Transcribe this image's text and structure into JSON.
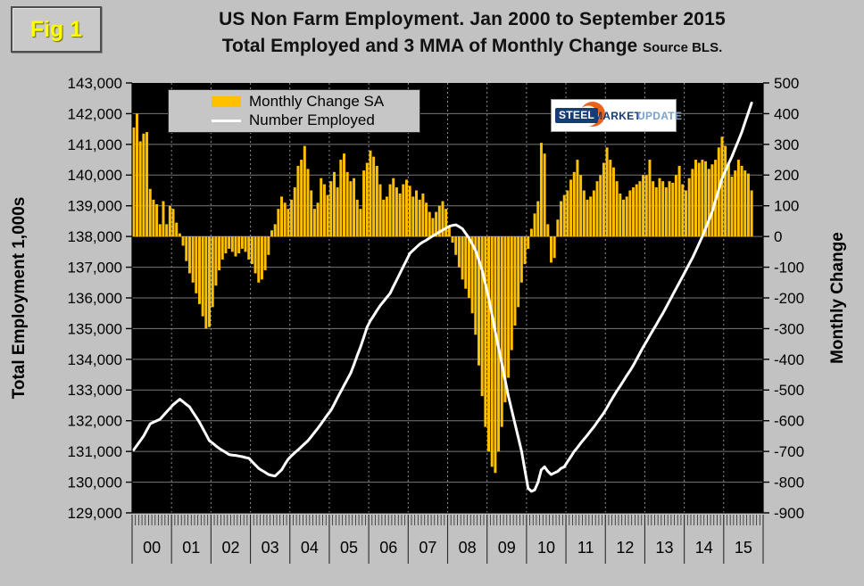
{
  "figure_label": "Fig 1",
  "title": {
    "line1": "US Non Farm Employment. Jan 2000 to September 2015",
    "line2": "Total Employed and 3 MMA of Monthly Change",
    "source": "Source BLS."
  },
  "legend": {
    "bar_label": "Monthly Change SA",
    "line_label": "Number Employed"
  },
  "logo": {
    "word1": "STEEL",
    "word2": "MARKET",
    "word3": "UPDATE"
  },
  "colors": {
    "page_bg": "#c2c2c2",
    "plot_bg": "#000000",
    "bar": "#FFC000",
    "line": "#ffffff",
    "hgrid": "#787878",
    "vgrid": "#8f8f8f",
    "axis_text": "#000000",
    "fig_label": "#ffff00",
    "logo_navy": "#173d75",
    "logo_light_blue": "#7ba1c9",
    "logo_orange": "#e8641b"
  },
  "axes": {
    "left_title": "Total Employment 1,000s",
    "right_title": "Monthly Change",
    "left_ticks": [
      "143,000",
      "142,000",
      "141,000",
      "140,000",
      "139,000",
      "138,000",
      "137,000",
      "136,000",
      "135,000",
      "134,000",
      "133,000",
      "132,000",
      "131,000",
      "130,000",
      "129,000"
    ],
    "right_ticks": [
      "500",
      "400",
      "300",
      "200",
      "100",
      "0",
      "-100",
      "-200",
      "-300",
      "-400",
      "-500",
      "-600",
      "-700",
      "-800",
      "-900"
    ],
    "x_labels": [
      "00",
      "01",
      "02",
      "03",
      "04",
      "05",
      "06",
      "07",
      "08",
      "09",
      "10",
      "11",
      "12",
      "13",
      "14",
      "15"
    ]
  },
  "chart_data": {
    "type": "bar+line",
    "title": "US Non Farm Employment. Jan 2000 to September 2015",
    "x_start": "2000-01",
    "x_end": "2015-09",
    "months_shown": 189,
    "month_slots": 192,
    "left_axis_range": [
      129000,
      143000
    ],
    "right_axis_range": [
      -900,
      500
    ],
    "legend_position": "top-left",
    "grid": "on",
    "series": [
      {
        "name": "Monthly Change SA",
        "type": "bar",
        "axis": "right",
        "values": [
          355,
          400,
          310,
          335,
          340,
          155,
          120,
          105,
          40,
          115,
          40,
          100,
          90,
          45,
          10,
          -30,
          -80,
          -120,
          -150,
          -185,
          -220,
          -260,
          -300,
          -295,
          -230,
          -160,
          -110,
          -75,
          -55,
          -40,
          -50,
          -65,
          -55,
          -40,
          -50,
          -75,
          -90,
          -120,
          -150,
          -140,
          -110,
          -60,
          20,
          40,
          90,
          130,
          110,
          90,
          120,
          160,
          230,
          250,
          295,
          220,
          150,
          90,
          110,
          190,
          170,
          135,
          180,
          210,
          160,
          250,
          270,
          210,
          180,
          190,
          120,
          90,
          215,
          240,
          280,
          260,
          230,
          170,
          120,
          130,
          170,
          190,
          160,
          140,
          170,
          185,
          165,
          130,
          150,
          120,
          140,
          110,
          80,
          60,
          80,
          100,
          115,
          90,
          30,
          -20,
          -60,
          -100,
          -140,
          -170,
          -200,
          -250,
          -320,
          -420,
          -520,
          -620,
          -700,
          -750,
          -770,
          -700,
          -620,
          -540,
          -460,
          -370,
          -290,
          -230,
          -150,
          -90,
          -40,
          25,
          75,
          115,
          305,
          270,
          40,
          -85,
          -70,
          55,
          115,
          135,
          150,
          185,
          210,
          250,
          200,
          150,
          120,
          130,
          150,
          180,
          200,
          240,
          290,
          250,
          225,
          180,
          140,
          120,
          130,
          150,
          160,
          170,
          180,
          200,
          200,
          250,
          180,
          160,
          190,
          180,
          160,
          180,
          175,
          200,
          230,
          170,
          150,
          190,
          220,
          250,
          240,
          250,
          245,
          220,
          235,
          250,
          290,
          325,
          295,
          240,
          195,
          215,
          250,
          230,
          215,
          205,
          150
        ]
      },
      {
        "name": "Number Employed",
        "type": "line",
        "axis": "left",
        "values": [
          131050,
          131200,
          131350,
          131500,
          131700,
          131900,
          131950,
          132000,
          132050,
          132170,
          132290,
          132400,
          132520,
          132610,
          132700,
          132620,
          132530,
          132450,
          132280,
          132120,
          131950,
          131750,
          131550,
          131350,
          131270,
          131180,
          131100,
          131030,
          130970,
          130900,
          130880,
          130870,
          130850,
          130830,
          130800,
          130780,
          130670,
          130560,
          130450,
          130380,
          130320,
          130250,
          130220,
          130200,
          130300,
          130400,
          130580,
          130750,
          130860,
          130960,
          131050,
          131150,
          131250,
          131350,
          131480,
          131620,
          131750,
          131900,
          132050,
          132200,
          132340,
          132540,
          132750,
          132950,
          133150,
          133350,
          133550,
          133830,
          134120,
          134400,
          134720,
          135050,
          135260,
          135420,
          135590,
          135750,
          135880,
          136020,
          136150,
          136370,
          136580,
          136800,
          137020,
          137230,
          137450,
          137550,
          137650,
          137750,
          137820,
          137880,
          137950,
          138020,
          138080,
          138150,
          138210,
          138270,
          138330,
          138360,
          138380,
          138320,
          138250,
          138100,
          137950,
          137750,
          137550,
          137230,
          136900,
          136450,
          136000,
          135450,
          134900,
          134380,
          133850,
          133330,
          132800,
          132350,
          131900,
          131450,
          131000,
          130400,
          129800,
          129700,
          129750,
          130000,
          130400,
          130500,
          130350,
          130250,
          130300,
          130350,
          130450,
          130500,
          130670,
          130830,
          131000,
          131130,
          131270,
          131400,
          131530,
          131670,
          131800,
          131950,
          132100,
          132250,
          132430,
          132620,
          132800,
          132970,
          133130,
          133300,
          133470,
          133630,
          133800,
          134000,
          134200,
          134400,
          134580,
          134770,
          134950,
          135130,
          135320,
          135500,
          135700,
          135900,
          136100,
          136300,
          136500,
          136700,
          136900,
          137100,
          137300,
          137530,
          137770,
          138000,
          138270,
          138530,
          138800,
          139170,
          139530,
          139900,
          140130,
          140370,
          140600,
          140870,
          141130,
          141400,
          141720,
          142030,
          142350
        ]
      }
    ]
  }
}
